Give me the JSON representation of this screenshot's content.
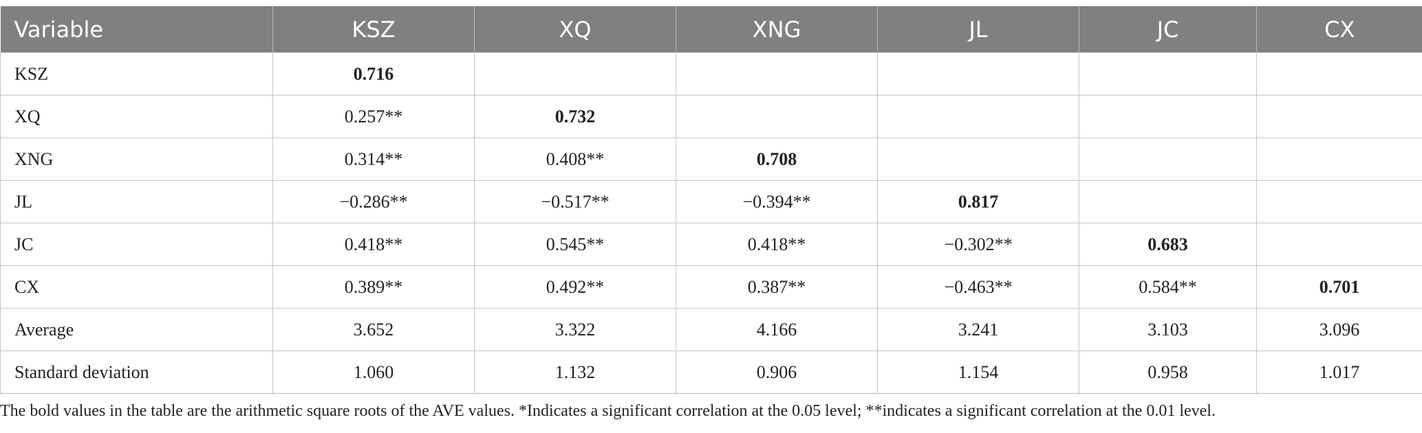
{
  "table": {
    "headers": [
      "Variable",
      "KSZ",
      "XQ",
      "XNG",
      "JL",
      "JC",
      "CX"
    ],
    "rows": [
      {
        "label": "KSZ",
        "cells": [
          "0.716",
          "",
          "",
          "",
          "",
          ""
        ]
      },
      {
        "label": "XQ",
        "cells": [
          "0.257**",
          "0.732",
          "",
          "",
          "",
          ""
        ]
      },
      {
        "label": "XNG",
        "cells": [
          "0.314**",
          "0.408**",
          "0.708",
          "",
          "",
          ""
        ]
      },
      {
        "label": "JL",
        "cells": [
          "−0.286**",
          "−0.517**",
          "−0.394**",
          "0.817",
          "",
          ""
        ]
      },
      {
        "label": "JC",
        "cells": [
          "0.418**",
          "0.545**",
          "0.418**",
          "−0.302**",
          "0.683",
          ""
        ]
      },
      {
        "label": "CX",
        "cells": [
          "0.389**",
          "0.492**",
          "0.387**",
          "−0.463**",
          "0.584**",
          "0.701"
        ]
      },
      {
        "label": "Average",
        "cells": [
          "3.652",
          "3.322",
          "4.166",
          "3.241",
          "3.103",
          "3.096"
        ]
      },
      {
        "label": "Standard deviation",
        "cells": [
          "1.060",
          "1.132",
          "0.906",
          "1.154",
          "0.958",
          "1.017"
        ]
      }
    ]
  },
  "footnote": "The bold values in the table are the arithmetic square roots of the AVE values. *Indicates a significant correlation at the 0.05 level; **indicates a significant correlation at the 0.01 level."
}
